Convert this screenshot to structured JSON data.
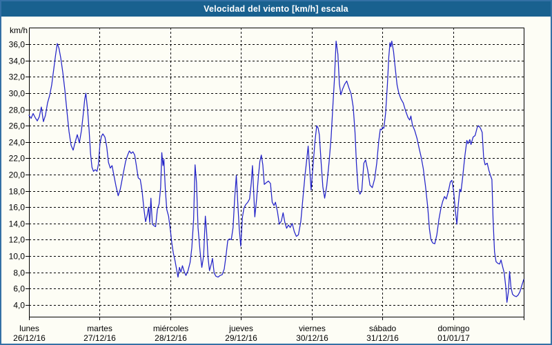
{
  "window": {
    "title": "Velocidad del viento [km/h] escala"
  },
  "colors": {
    "frame_border": "#3470a5",
    "titlebar_bg": "#19618f",
    "titlebar_text": "#ffffff",
    "background": "#fdfdf5",
    "line": "#2222c8",
    "axis_and_grid": "#000000",
    "label_text": "#000000"
  },
  "chart_data": {
    "type": "line",
    "title": "Velocidad del viento [km/h] escala",
    "ylabel": "km/h",
    "xlabel": "",
    "grid": "dashed",
    "legend": "none",
    "x_unit": "hours from lunes 26/12/16 00:00",
    "x_range_hours": [
      0,
      168
    ],
    "y_gridlines": [
      4,
      6,
      8,
      10,
      12,
      14,
      16,
      18,
      20,
      22,
      24,
      26,
      28,
      30,
      32,
      34,
      36
    ],
    "y_tick_labels": [
      "36,0",
      "34,0",
      "32,0",
      "30,0",
      "28,0",
      "26,0",
      "24,0",
      "22,0",
      "20,0",
      "18,0",
      "16,0",
      "14,0",
      "12,0",
      "10,0",
      "8,0",
      "6,0",
      "4,0"
    ],
    "y_view_range": [
      2.5,
      38.1
    ],
    "x_day_ticks_hours": [
      0,
      24,
      48,
      72,
      96,
      120,
      144,
      168
    ],
    "days": [
      {
        "name": "lunes",
        "date": "26/12/16"
      },
      {
        "name": "martes",
        "date": "27/12/16"
      },
      {
        "name": "miércoles",
        "date": "28/12/16"
      },
      {
        "name": "jueves",
        "date": "29/12/16"
      },
      {
        "name": "viernes",
        "date": "30/12/16"
      },
      {
        "name": "sábado",
        "date": "31/12/16"
      },
      {
        "name": "domingo",
        "date": "01/01/17"
      }
    ],
    "series": [
      {
        "name": "Velocidad del viento",
        "color": "#2222c8",
        "points": [
          [
            0,
            27.3
          ],
          [
            0.7,
            26.9
          ],
          [
            1.4,
            27.5
          ],
          [
            2.1,
            27.0
          ],
          [
            2.8,
            26.6
          ],
          [
            3.5,
            27.1
          ],
          [
            4.2,
            28.3
          ],
          [
            4.9,
            26.5
          ],
          [
            5.6,
            27.3
          ],
          [
            6.3,
            28.8
          ],
          [
            7.0,
            29.7
          ],
          [
            7.7,
            31.0
          ],
          [
            8.4,
            32.9
          ],
          [
            9.0,
            34.6
          ],
          [
            9.6,
            36.1
          ],
          [
            10.2,
            35.5
          ],
          [
            10.8,
            34.3
          ],
          [
            11.5,
            32.5
          ],
          [
            12.2,
            30.3
          ],
          [
            12.9,
            27.7
          ],
          [
            13.6,
            25.3
          ],
          [
            14.3,
            23.6
          ],
          [
            15.0,
            23.0
          ],
          [
            15.7,
            24.0
          ],
          [
            16.4,
            24.9
          ],
          [
            17.1,
            23.9
          ],
          [
            17.8,
            25.4
          ],
          [
            18.4,
            27.3
          ],
          [
            18.9,
            29.2
          ],
          [
            19.3,
            30.0
          ],
          [
            19.9,
            28.0
          ],
          [
            20.4,
            25.5
          ],
          [
            20.9,
            22.6
          ],
          [
            21.4,
            20.9
          ],
          [
            21.9,
            20.4
          ],
          [
            22.5,
            20.6
          ],
          [
            23.1,
            20.4
          ],
          [
            23.6,
            21.3
          ],
          [
            24.1,
            23.8
          ],
          [
            24.6,
            24.7
          ],
          [
            25.1,
            25.0
          ],
          [
            25.8,
            24.6
          ],
          [
            26.4,
            23.4
          ],
          [
            27.0,
            21.5
          ],
          [
            27.6,
            20.8
          ],
          [
            28.2,
            21.1
          ],
          [
            28.9,
            19.8
          ],
          [
            29.6,
            18.5
          ],
          [
            30.3,
            17.4
          ],
          [
            31.0,
            18.2
          ],
          [
            31.9,
            19.9
          ],
          [
            32.8,
            21.6
          ],
          [
            33.5,
            22.4
          ],
          [
            34.1,
            22.9
          ],
          [
            34.7,
            22.6
          ],
          [
            35.3,
            22.8
          ],
          [
            35.9,
            22.4
          ],
          [
            36.5,
            21.0
          ],
          [
            37.1,
            19.6
          ],
          [
            37.8,
            19.4
          ],
          [
            38.4,
            18.0
          ],
          [
            39.0,
            15.9
          ],
          [
            39.6,
            14.2
          ],
          [
            40.2,
            15.1
          ],
          [
            40.6,
            16.0
          ],
          [
            41.0,
            14.1
          ],
          [
            41.4,
            17.1
          ],
          [
            41.9,
            13.9
          ],
          [
            42.5,
            13.7
          ],
          [
            43.0,
            13.6
          ],
          [
            43.6,
            15.7
          ],
          [
            44.2,
            16.4
          ],
          [
            44.7,
            18.4
          ],
          [
            45.1,
            22.7
          ],
          [
            45.5,
            21.1
          ],
          [
            45.8,
            21.9
          ],
          [
            46.3,
            18.2
          ],
          [
            46.8,
            15.7
          ],
          [
            47.4,
            14.9
          ],
          [
            48.0,
            13.2
          ],
          [
            48.5,
            11.6
          ],
          [
            49.0,
            10.4
          ],
          [
            49.6,
            9.4
          ],
          [
            50.1,
            8.4
          ],
          [
            50.6,
            7.4
          ],
          [
            51.1,
            8.6
          ],
          [
            51.6,
            8.0
          ],
          [
            52.1,
            8.8
          ],
          [
            52.7,
            8.1
          ],
          [
            53.3,
            7.6
          ],
          [
            54.0,
            8.2
          ],
          [
            54.7,
            9.2
          ],
          [
            55.3,
            11.0
          ],
          [
            55.9,
            14.5
          ],
          [
            56.4,
            21.2
          ],
          [
            56.9,
            19.0
          ],
          [
            57.4,
            13.5
          ],
          [
            58.1,
            10.5
          ],
          [
            58.7,
            8.6
          ],
          [
            59.3,
            10.0
          ],
          [
            59.9,
            14.9
          ],
          [
            60.3,
            13.0
          ],
          [
            60.8,
            9.8
          ],
          [
            61.3,
            8.2
          ],
          [
            61.9,
            9.0
          ],
          [
            62.3,
            9.7
          ],
          [
            62.9,
            7.9
          ],
          [
            63.5,
            7.5
          ],
          [
            64.2,
            7.4
          ],
          [
            64.9,
            7.6
          ],
          [
            65.6,
            7.7
          ],
          [
            66.3,
            8.4
          ],
          [
            66.9,
            10.0
          ],
          [
            67.5,
            11.9
          ],
          [
            68.1,
            12.1
          ],
          [
            68.7,
            12.0
          ],
          [
            69.3,
            13.5
          ],
          [
            69.8,
            16.8
          ],
          [
            70.4,
            19.9
          ],
          [
            70.9,
            16.5
          ],
          [
            71.4,
            13.4
          ],
          [
            71.9,
            11.2
          ],
          [
            72.5,
            14.8
          ],
          [
            73.0,
            15.9
          ],
          [
            73.6,
            16.3
          ],
          [
            74.3,
            16.6
          ],
          [
            74.9,
            17.0
          ],
          [
            75.5,
            19.0
          ],
          [
            75.9,
            21.1
          ],
          [
            76.3,
            18.0
          ],
          [
            76.7,
            14.8
          ],
          [
            77.3,
            17.0
          ],
          [
            77.9,
            19.8
          ],
          [
            78.4,
            21.6
          ],
          [
            78.9,
            22.4
          ],
          [
            79.4,
            21.2
          ],
          [
            79.9,
            18.8
          ],
          [
            80.6,
            19.0
          ],
          [
            81.3,
            19.2
          ],
          [
            82.0,
            18.9
          ],
          [
            82.6,
            16.6
          ],
          [
            83.2,
            16.2
          ],
          [
            83.7,
            16.6
          ],
          [
            84.4,
            15.4
          ],
          [
            85.0,
            13.9
          ],
          [
            85.7,
            14.3
          ],
          [
            86.3,
            15.3
          ],
          [
            86.9,
            14.1
          ],
          [
            87.5,
            13.4
          ],
          [
            88.1,
            13.8
          ],
          [
            88.7,
            13.5
          ],
          [
            89.4,
            14.0
          ],
          [
            90.1,
            13.0
          ],
          [
            90.8,
            12.4
          ],
          [
            91.5,
            12.6
          ],
          [
            92.3,
            14.2
          ],
          [
            93.0,
            17.0
          ],
          [
            93.7,
            19.8
          ],
          [
            94.3,
            21.8
          ],
          [
            94.8,
            23.5
          ],
          [
            95.3,
            20.8
          ],
          [
            95.8,
            18.1
          ],
          [
            96.4,
            20.8
          ],
          [
            97.1,
            24.0
          ],
          [
            97.7,
            26.0
          ],
          [
            98.2,
            25.7
          ],
          [
            98.6,
            24.9
          ],
          [
            99.2,
            21.5
          ],
          [
            99.8,
            18.5
          ],
          [
            100.4,
            17.1
          ],
          [
            101.1,
            18.6
          ],
          [
            101.9,
            21.5
          ],
          [
            102.6,
            24.6
          ],
          [
            103.2,
            28.4
          ],
          [
            103.7,
            31.6
          ],
          [
            104.3,
            36.4
          ],
          [
            104.9,
            34.8
          ],
          [
            105.4,
            31.2
          ],
          [
            105.9,
            29.8
          ],
          [
            106.5,
            30.5
          ],
          [
            107.2,
            31.1
          ],
          [
            107.9,
            31.5
          ],
          [
            108.6,
            30.7
          ],
          [
            109.4,
            29.9
          ],
          [
            110.1,
            28.3
          ],
          [
            110.7,
            25.2
          ],
          [
            111.2,
            21.3
          ],
          [
            111.8,
            18.2
          ],
          [
            112.4,
            17.6
          ],
          [
            113.0,
            18.0
          ],
          [
            113.7,
            21.4
          ],
          [
            114.3,
            21.8
          ],
          [
            115.0,
            20.6
          ],
          [
            115.8,
            18.7
          ],
          [
            116.6,
            18.4
          ],
          [
            117.4,
            19.5
          ],
          [
            118.1,
            21.4
          ],
          [
            118.8,
            24.2
          ],
          [
            119.3,
            25.6
          ],
          [
            119.8,
            25.5
          ],
          [
            120.0,
            25.8
          ],
          [
            120.5,
            25.7
          ],
          [
            121.1,
            27.5
          ],
          [
            121.7,
            31.0
          ],
          [
            122.2,
            34.5
          ],
          [
            122.6,
            36.2
          ],
          [
            122.9,
            35.7
          ],
          [
            123.2,
            36.4
          ],
          [
            123.8,
            35.1
          ],
          [
            124.4,
            33.0
          ],
          [
            125.0,
            31.0
          ],
          [
            125.6,
            30.0
          ],
          [
            126.3,
            29.3
          ],
          [
            127.1,
            28.8
          ],
          [
            127.9,
            27.8
          ],
          [
            128.7,
            27.0
          ],
          [
            129.3,
            26.7
          ],
          [
            129.7,
            27.2
          ],
          [
            130.2,
            26.1
          ],
          [
            131.0,
            25.4
          ],
          [
            131.8,
            24.4
          ],
          [
            132.5,
            23.2
          ],
          [
            133.2,
            22.1
          ],
          [
            133.9,
            20.7
          ],
          [
            134.7,
            18.4
          ],
          [
            135.4,
            16.0
          ],
          [
            136.0,
            13.3
          ],
          [
            136.5,
            12.0
          ],
          [
            137.1,
            11.6
          ],
          [
            137.8,
            11.5
          ],
          [
            138.5,
            12.6
          ],
          [
            139.2,
            14.5
          ],
          [
            139.9,
            15.9
          ],
          [
            140.5,
            16.7
          ],
          [
            141.1,
            17.3
          ],
          [
            141.7,
            17.0
          ],
          [
            142.4,
            17.9
          ],
          [
            143.1,
            19.1
          ],
          [
            143.6,
            19.3
          ],
          [
            144.2,
            18.0
          ],
          [
            144.8,
            15.5
          ],
          [
            145.3,
            13.9
          ],
          [
            145.8,
            16.4
          ],
          [
            146.3,
            18.2
          ],
          [
            146.7,
            17.9
          ],
          [
            147.3,
            19.8
          ],
          [
            148.0,
            22.2
          ],
          [
            148.7,
            24.2
          ],
          [
            149.1,
            23.8
          ],
          [
            149.7,
            24.3
          ],
          [
            150.1,
            23.7
          ],
          [
            150.8,
            24.6
          ],
          [
            151.5,
            24.8
          ],
          [
            152.2,
            25.8
          ],
          [
            152.7,
            26.0
          ],
          [
            153.3,
            25.7
          ],
          [
            153.9,
            25.2
          ],
          [
            154.4,
            22.0
          ],
          [
            154.9,
            21.2
          ],
          [
            155.6,
            21.4
          ],
          [
            156.2,
            20.5
          ],
          [
            156.8,
            19.8
          ],
          [
            157.2,
            19.4
          ],
          [
            157.6,
            14.5
          ],
          [
            158.1,
            10.5
          ],
          [
            158.6,
            9.3
          ],
          [
            159.2,
            9.1
          ],
          [
            159.8,
            9.0
          ],
          [
            160.3,
            9.5
          ],
          [
            160.9,
            8.6
          ],
          [
            161.4,
            7.9
          ],
          [
            161.9,
            6.2
          ],
          [
            162.3,
            4.3
          ],
          [
            162.8,
            5.6
          ],
          [
            163.2,
            8.1
          ],
          [
            163.7,
            6.1
          ],
          [
            164.2,
            5.3
          ],
          [
            164.8,
            5.1
          ],
          [
            165.5,
            5.0
          ],
          [
            166.1,
            5.2
          ],
          [
            166.7,
            5.6
          ],
          [
            167.3,
            6.3
          ],
          [
            168.0,
            7.1
          ]
        ]
      }
    ]
  }
}
